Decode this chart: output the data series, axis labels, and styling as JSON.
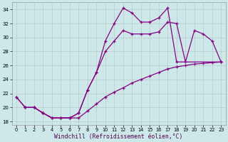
{
  "xlabel": "Windchill (Refroidissement éolien,°C)",
  "background_color": "#cce8e8",
  "grid_color": "#aaaaaa",
  "line_color": "#880088",
  "xlim": [
    -0.5,
    23.5
  ],
  "ylim": [
    17.5,
    35.0
  ],
  "yticks": [
    18,
    20,
    22,
    24,
    26,
    28,
    30,
    32,
    34
  ],
  "xticks": [
    0,
    1,
    2,
    3,
    4,
    5,
    6,
    7,
    8,
    9,
    10,
    11,
    12,
    13,
    14,
    15,
    16,
    17,
    18,
    19,
    20,
    21,
    22,
    23
  ],
  "curve_upper_x": [
    0,
    1,
    2,
    3,
    4,
    5,
    6,
    7,
    8,
    9,
    10,
    11,
    12,
    13,
    14,
    15,
    16,
    17,
    18,
    23
  ],
  "curve_upper_y": [
    21.5,
    20.0,
    20.0,
    19.2,
    18.5,
    18.5,
    18.5,
    19.2,
    22.5,
    25.0,
    29.5,
    32.0,
    34.2,
    33.5,
    32.2,
    32.2,
    32.8,
    34.2,
    26.5,
    26.5
  ],
  "curve_middle_x": [
    0,
    1,
    2,
    3,
    4,
    5,
    6,
    7,
    8,
    9,
    10,
    11,
    12,
    13,
    14,
    15,
    16,
    17,
    18,
    19,
    20,
    21,
    22,
    23
  ],
  "curve_middle_y": [
    21.5,
    20.0,
    20.0,
    19.2,
    18.5,
    18.5,
    18.5,
    19.2,
    22.5,
    25.0,
    28.0,
    29.5,
    31.0,
    30.5,
    30.5,
    30.5,
    30.8,
    32.2,
    32.0,
    26.5,
    31.0,
    30.5,
    29.5,
    26.5
  ],
  "curve_lower_x": [
    1,
    2,
    3,
    4,
    5,
    6,
    7,
    8,
    9,
    10,
    11,
    12,
    13,
    14,
    15,
    16,
    17,
    18,
    19,
    20,
    21,
    22,
    23
  ],
  "curve_lower_y": [
    20.0,
    20.0,
    19.2,
    18.5,
    18.5,
    18.5,
    18.5,
    19.5,
    20.5,
    21.5,
    22.2,
    22.8,
    23.5,
    24.0,
    24.5,
    25.0,
    25.5,
    25.8,
    26.0,
    26.2,
    26.3,
    26.4,
    26.5
  ]
}
